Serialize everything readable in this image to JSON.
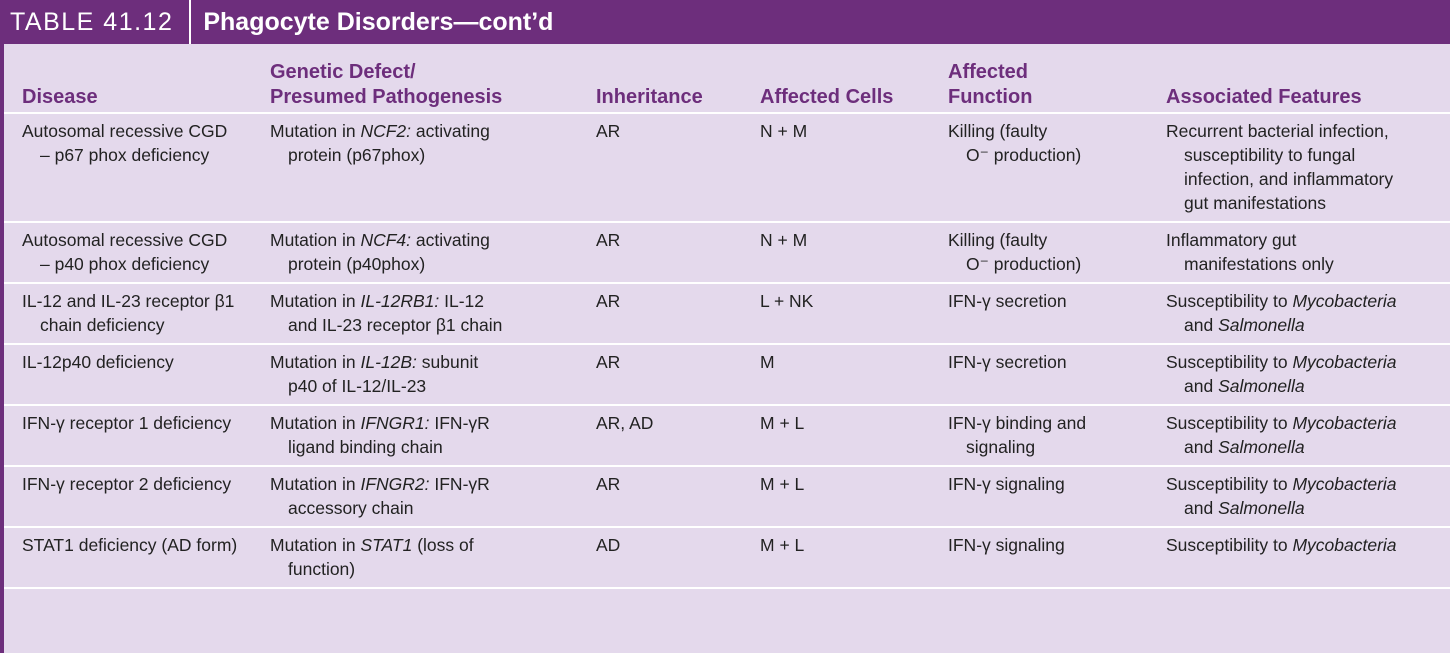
{
  "title": {
    "label": "TABLE 41.12",
    "text": "Phagocyte Disorders—cont’d"
  },
  "columns": [
    {
      "line1": "",
      "line2": "Disease"
    },
    {
      "line1": "Genetic Defect/",
      "line2": "Presumed Pathogenesis"
    },
    {
      "line1": "",
      "line2": "Inheritance"
    },
    {
      "line1": "",
      "line2": "Affected Cells"
    },
    {
      "line1": "Affected",
      "line2": "Function"
    },
    {
      "line1": "",
      "line2": "Associated Features"
    }
  ],
  "rows": [
    {
      "disease": [
        "Autosomal recessive CGD",
        "– p67 phox deficiency"
      ],
      "defect": {
        "pre": "Mutation in ",
        "gene": "NCF2:",
        "l1_post": " activating",
        "line2": "protein (p67phox)"
      },
      "inheritance": "AR",
      "cells": "N + M",
      "function": [
        "Killing (faulty",
        "O⁻ production)"
      ],
      "features": {
        "line1": "Recurrent bacterial infection,",
        "rest": [
          "susceptibility to fungal",
          "infection, and inflammatory",
          "gut manifestations"
        ]
      }
    },
    {
      "disease": [
        "Autosomal recessive CGD",
        "– p40 phox deficiency"
      ],
      "defect": {
        "pre": "Mutation in ",
        "gene": "NCF4:",
        "l1_post": " activating",
        "line2": "protein (p40phox)"
      },
      "inheritance": "AR",
      "cells": "N + M",
      "function": [
        "Killing (faulty",
        "O⁻ production)"
      ],
      "features": {
        "line1": "Inflammatory gut",
        "rest": [
          "manifestations only"
        ]
      }
    },
    {
      "disease": [
        "IL-12 and IL-23 receptor β1",
        "chain deficiency"
      ],
      "defect": {
        "pre": "Mutation in ",
        "gene": "IL-12RB1:",
        "l1_post": " IL-12",
        "line2": "and IL-23 receptor β1 chain"
      },
      "inheritance": "AR",
      "cells": "L + NK",
      "function": [
        "IFN-γ secretion",
        ""
      ],
      "features": {
        "pre": "Susceptibility to ",
        "org1": "Mycobacteria",
        "and": "and ",
        "org2": "Salmonella"
      }
    },
    {
      "disease": [
        "IL-12p40 deficiency",
        ""
      ],
      "defect": {
        "pre": "Mutation in ",
        "gene": "IL-12B:",
        "l1_post": " subunit",
        "line2": "p40 of IL-12/IL-23"
      },
      "inheritance": "AR",
      "cells": "M",
      "function": [
        "IFN-γ secretion",
        ""
      ],
      "features": {
        "pre": "Susceptibility to ",
        "org1": "Mycobacteria",
        "and": "and ",
        "org2": "Salmonella"
      }
    },
    {
      "disease": [
        "IFN-γ receptor 1 deficiency",
        ""
      ],
      "defect": {
        "pre": "Mutation in ",
        "gene": "IFNGR1:",
        "l1_post": " IFN-γR",
        "line2": "ligand binding chain"
      },
      "inheritance": "AR, AD",
      "cells": "M + L",
      "function": [
        "IFN-γ binding and",
        "signaling"
      ],
      "features": {
        "pre": "Susceptibility to ",
        "org1": "Mycobacteria",
        "and": "and ",
        "org2": "Salmonella"
      }
    },
    {
      "disease": [
        "IFN-γ receptor 2 deficiency",
        ""
      ],
      "defect": {
        "pre": "Mutation in ",
        "gene": "IFNGR2:",
        "l1_post": " IFN-γR",
        "line2": "accessory chain"
      },
      "inheritance": "AR",
      "cells": "M + L",
      "function": [
        "IFN-γ signaling",
        ""
      ],
      "features": {
        "pre": "Susceptibility to ",
        "org1": "Mycobacteria",
        "and": "and ",
        "org2": "Salmonella"
      }
    },
    {
      "disease": [
        "STAT1 deficiency (AD form)",
        ""
      ],
      "defect": {
        "pre": "Mutation in ",
        "gene": "STAT1",
        "l1_post": " (loss of",
        "line2": "function)"
      },
      "inheritance": "AD",
      "cells": "M + L",
      "function": [
        "IFN-γ signaling",
        ""
      ],
      "features": {
        "pre": "Susceptibility to ",
        "org1": "Mycobacteria",
        "and": "",
        "org2": ""
      }
    }
  ]
}
